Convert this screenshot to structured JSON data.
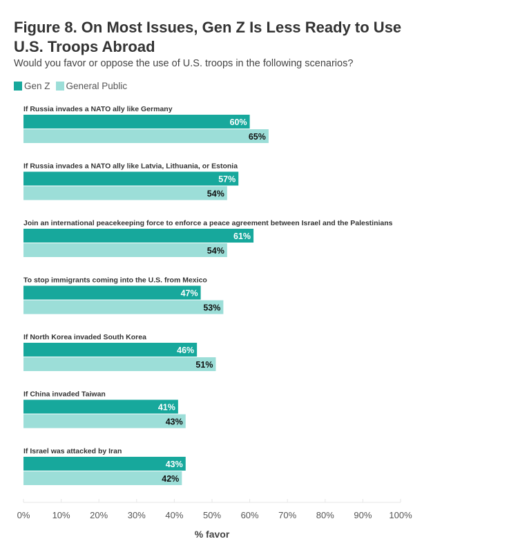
{
  "chart_data": {
    "type": "bar",
    "orientation": "horizontal",
    "title": "Figure 8. On Most Issues, Gen Z Is Less Ready to Use U.S. Troops Abroad",
    "subtitle": "Would you favor or oppose the use of U.S. troops in the following scenarios?",
    "xlabel": "% favor",
    "xlim": [
      0,
      100
    ],
    "xticks": [
      "0%",
      "10%",
      "20%",
      "30%",
      "40%",
      "50%",
      "60%",
      "70%",
      "80%",
      "90%",
      "100%"
    ],
    "categories": [
      "If Russia invades a NATO ally like Germany",
      "If Russia invades a NATO ally like Latvia, Lithuania, or Estonia",
      "Join an international peacekeeping force to enforce a peace agreement between Israel and the Palestinians",
      "To stop immigrants coming into the U.S. from Mexico",
      "If North Korea invaded South Korea",
      "If China invaded Taiwan",
      "If Israel was attacked by Iran"
    ],
    "series": [
      {
        "name": "Gen Z",
        "color": "#17a89c",
        "label_color": "#ffffff",
        "values": [
          60,
          57,
          61,
          47,
          46,
          41,
          43
        ]
      },
      {
        "name": "General Public",
        "color": "#9cded8",
        "label_color": "#111111",
        "values": [
          65,
          54,
          54,
          53,
          51,
          43,
          42
        ]
      }
    ],
    "legend": "top-left"
  }
}
